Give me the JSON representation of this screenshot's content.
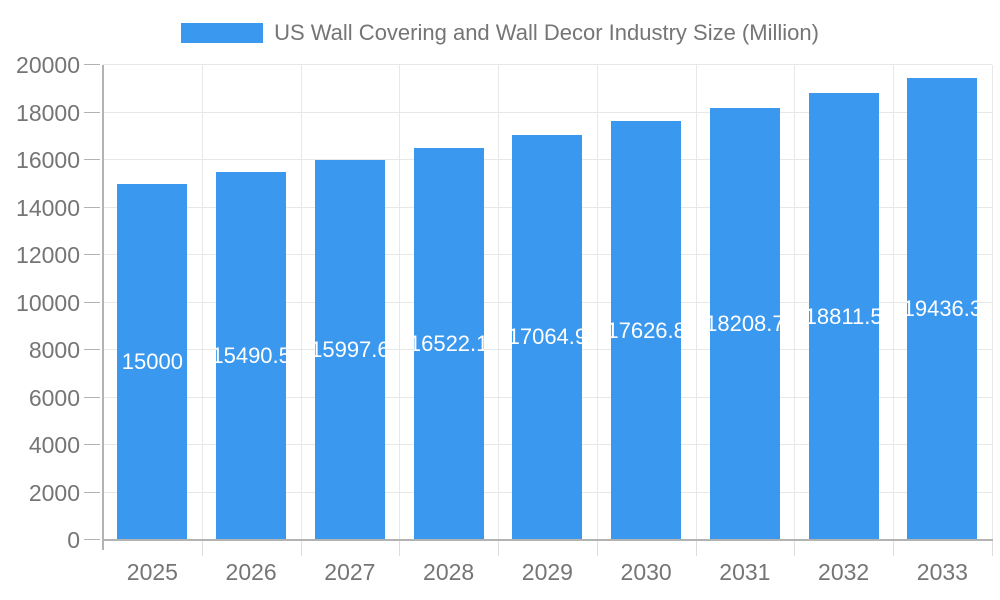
{
  "legend": {
    "label": "US Wall Covering and Wall Decor Industry Size (Million)",
    "swatch_color": "#3b98ef"
  },
  "chart_data": {
    "type": "bar",
    "title": "US Wall Covering and Wall Decor Industry Size (Million)",
    "categories": [
      "2025",
      "2026",
      "2027",
      "2028",
      "2029",
      "2030",
      "2031",
      "2032",
      "2033"
    ],
    "values": [
      15000,
      15490.5,
      15997.6,
      16522.1,
      17064.9,
      17626.8,
      18208.7,
      18811.5,
      19436.3
    ],
    "bar_labels": [
      "15000",
      "15490.5",
      "15997.6",
      "16522.1",
      "17064.9",
      "17626.8",
      "18208.7",
      "18811.5",
      "19436.3"
    ],
    "xlabel": "",
    "ylabel": "",
    "ylim": [
      0,
      20000
    ],
    "ytick_step": 2000,
    "yticks": [
      0,
      2000,
      4000,
      6000,
      8000,
      10000,
      12000,
      14000,
      16000,
      18000,
      20000
    ],
    "grid": true,
    "legend_position": "top",
    "bar_color": "#3b98ef",
    "bar_label_color": "#ffffff",
    "axis_text_color": "#757575",
    "axis_line_color": "#b3b3b3",
    "gridline_color": "#e8e8e8"
  }
}
